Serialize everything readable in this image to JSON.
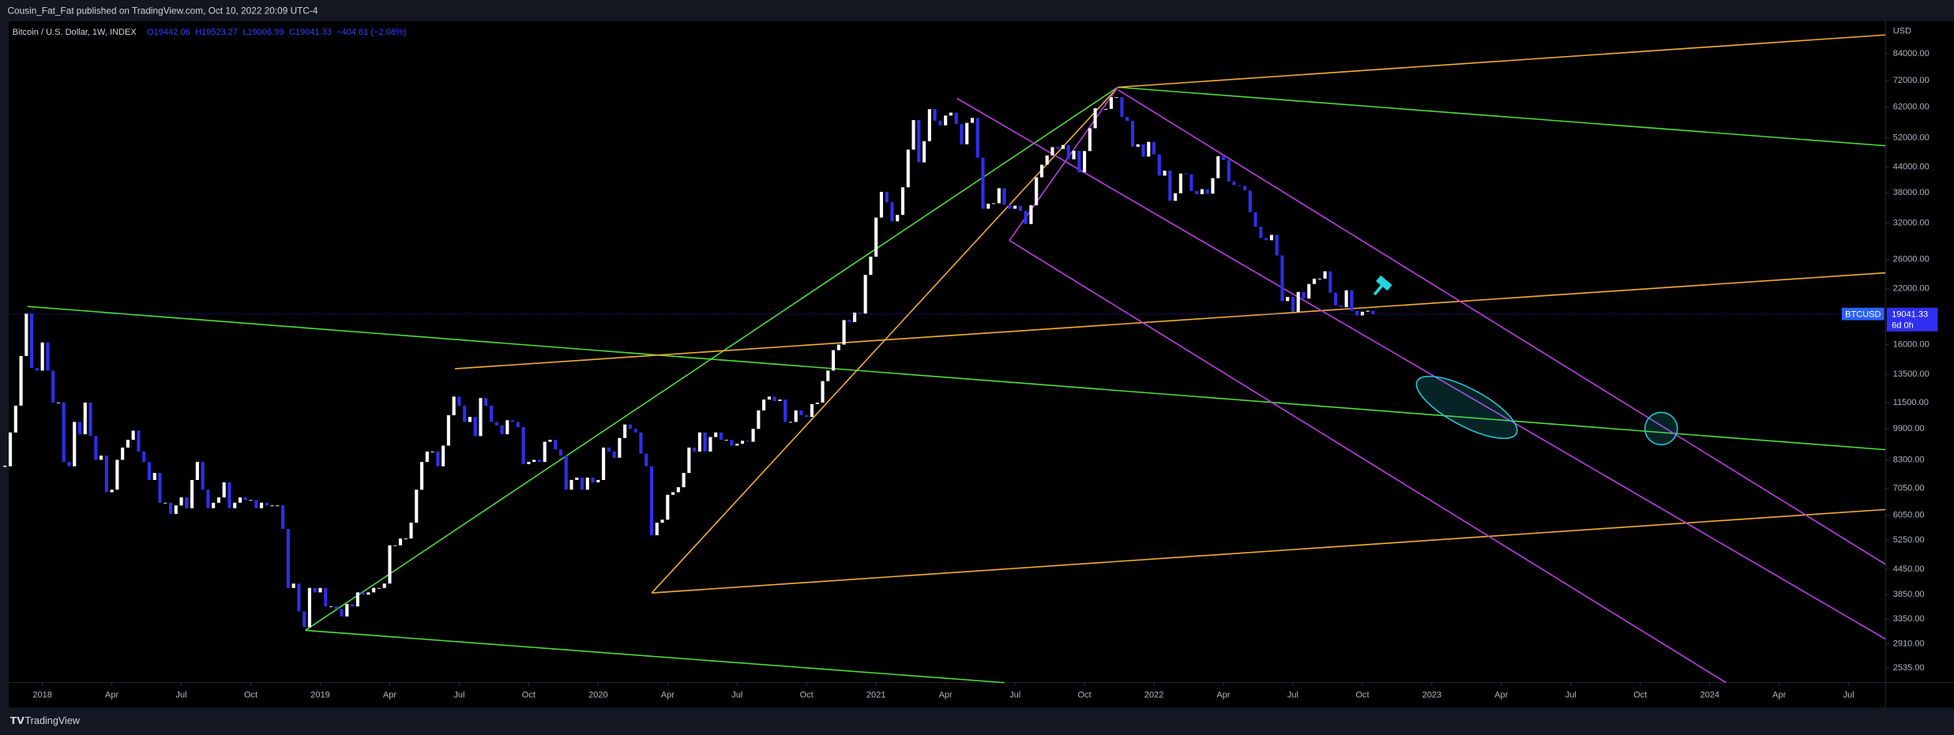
{
  "header": {
    "publisher": "Cousin_Fat_Fat published on TradingView.com, Oct 10, 2022 20:09 UTC-4"
  },
  "chart_data": {
    "type": "candlestick",
    "title": "Bitcoin / U.S. Dollar, 1W, INDEX",
    "ohlc_legend": [
      "O19442.06",
      "H19523.27",
      "L19006.99",
      "C19041.33",
      "−404.61 (−2.08%)"
    ],
    "currency": "USD",
    "countdown": "6d 0h",
    "log_scale": true,
    "grid": false,
    "series": [
      {
        "name": "BTCUSD",
        "up_color": "#ffffff",
        "down_color": "#2f2ff0",
        "values": [
          8000,
          9700,
          11300,
          15000,
          19100,
          14000,
          13800,
          16200,
          13800,
          11500,
          11500,
          8200,
          8000,
          10300,
          9600,
          11500,
          9500,
          8300,
          8500,
          6900,
          7000,
          8300,
          8900,
          9300,
          9800,
          8700,
          8200,
          7400,
          7700,
          6500,
          6500,
          6100,
          6400,
          6700,
          6300,
          7400,
          8200,
          7000,
          6300,
          6500,
          6700,
          7300,
          6300,
          6500,
          6700,
          6600,
          6600,
          6300,
          6500,
          6400,
          6400,
          6400,
          5600,
          4000,
          4100,
          3500,
          3200,
          4000,
          3900,
          4000,
          3600,
          3600,
          3550,
          3400,
          3650,
          3600,
          3900,
          3850,
          3900,
          4000,
          4000,
          4100,
          5100,
          5100,
          5300,
          5300,
          5800,
          7000,
          8200,
          8700,
          8700,
          8000,
          9000,
          10700,
          11900,
          11300,
          10300,
          10600,
          9500,
          11800,
          11300,
          10300,
          10100,
          9600,
          10400,
          10300,
          10000,
          8100,
          8200,
          8300,
          8200,
          9200,
          9300,
          8800,
          8500,
          7000,
          7400,
          7500,
          7000,
          7500,
          7300,
          7400,
          8900,
          8700,
          8400,
          9400,
          10150,
          9900,
          9700,
          8600,
          8000,
          5400,
          5800,
          5900,
          6800,
          6900,
          7100,
          7700,
          8900,
          8700,
          9700,
          8700,
          9450,
          9700,
          9300,
          9300,
          9000,
          9100,
          9250,
          9200,
          9900,
          11000,
          11700,
          11900,
          11600,
          11700,
          10300,
          10300,
          11000,
          10700,
          10600,
          11400,
          11500,
          13000,
          13800,
          15500,
          16000,
          18400,
          18200,
          19200,
          19100,
          23800,
          26400,
          33000,
          38200,
          36000,
          32300,
          33500,
          39200,
          48600,
          57500,
          45200,
          51000,
          61200,
          57300,
          55800,
          59000,
          60000,
          56200,
          50100,
          56600,
          58200,
          46400,
          34700,
          35700,
          35800,
          39000,
          35500,
          34700,
          35300,
          34300,
          31800,
          35400,
          41500,
          44600,
          47000,
          49300,
          48800,
          49900,
          46000,
          48300,
          42700,
          48200,
          54900,
          61500,
          61300,
          61300,
          65500,
          65500,
          58600,
          57200,
          49400,
          50100,
          46700,
          50800,
          47300,
          41900,
          43100,
          36300,
          37900,
          42400,
          42200,
          38400,
          37700,
          38800,
          37800,
          41300,
          46800,
          45800,
          40500,
          39700,
          39500,
          38500,
          34000,
          31300,
          29400,
          29000,
          29900,
          26600,
          20500,
          21000,
          19300,
          21600,
          20800,
          22600,
          23300,
          23300,
          24300,
          21500,
          20000,
          19800,
          21800,
          19400,
          18900,
          19300,
          19400,
          19041.33
        ]
      }
    ],
    "ylim": [
      2332,
      101000
    ],
    "yticks": [
      {
        "value": 84000,
        "label": "84000.00"
      },
      {
        "value": 72000,
        "label": "72000.00"
      },
      {
        "value": 62000,
        "label": "62000.00"
      },
      {
        "value": 52000,
        "label": "52000.00"
      },
      {
        "value": 44000,
        "label": "44000.00"
      },
      {
        "value": 38000,
        "label": "38000.00"
      },
      {
        "value": 32000,
        "label": "32000.00"
      },
      {
        "value": 26000,
        "label": "26000.00"
      },
      {
        "value": 22000,
        "label": "22000.00"
      },
      {
        "value": 16000,
        "label": "16000.00"
      },
      {
        "value": 13500,
        "label": "13500.00"
      },
      {
        "value": 11500,
        "label": "11500.00"
      },
      {
        "value": 9900,
        "label": "9900.00"
      },
      {
        "value": 8300,
        "label": "8300.00"
      },
      {
        "value": 7050,
        "label": "7050.00"
      },
      {
        "value": 6050,
        "label": "6050.00"
      },
      {
        "value": 5250,
        "label": "5250.00"
      },
      {
        "value": 4450,
        "label": "4450.00"
      },
      {
        "value": 3850,
        "label": "3850.00"
      },
      {
        "value": 3350,
        "label": "3350.00"
      },
      {
        "value": 2910,
        "label": "2910.00"
      },
      {
        "value": 2535,
        "label": "2535.00"
      }
    ],
    "xticks": [
      2018,
      {
        "value": 2018.25,
        "label": "Apr"
      },
      {
        "value": 2018.5,
        "label": "Jul"
      },
      {
        "value": 2018.75,
        "label": "Oct"
      },
      2019,
      {
        "value": 2019.25,
        "label": "Apr"
      },
      {
        "value": 2019.5,
        "label": "Jul"
      },
      {
        "value": 2019.75,
        "label": "Oct"
      },
      2020,
      {
        "value": 2020.25,
        "label": "Apr"
      },
      {
        "value": 2020.5,
        "label": "Jul"
      },
      {
        "value": 2020.75,
        "label": "Oct"
      },
      2021,
      {
        "value": 2021.25,
        "label": "Apr"
      },
      {
        "value": 2021.5,
        "label": "Jul"
      },
      {
        "value": 2021.75,
        "label": "Oct"
      },
      2022,
      {
        "value": 2022.25,
        "label": "Apr"
      },
      {
        "value": 2022.5,
        "label": "Jul"
      },
      {
        "value": 2022.75,
        "label": "Oct"
      },
      2023,
      {
        "value": 2023.25,
        "label": "Apr"
      },
      {
        "value": 2023.5,
        "label": "Jul"
      },
      {
        "value": 2023.75,
        "label": "Oct"
      },
      2024,
      {
        "value": 2024.25,
        "label": "Apr"
      },
      {
        "value": 2024.5,
        "label": "Jul"
      }
    ]
  },
  "footer": {
    "brand": "TradingView"
  }
}
